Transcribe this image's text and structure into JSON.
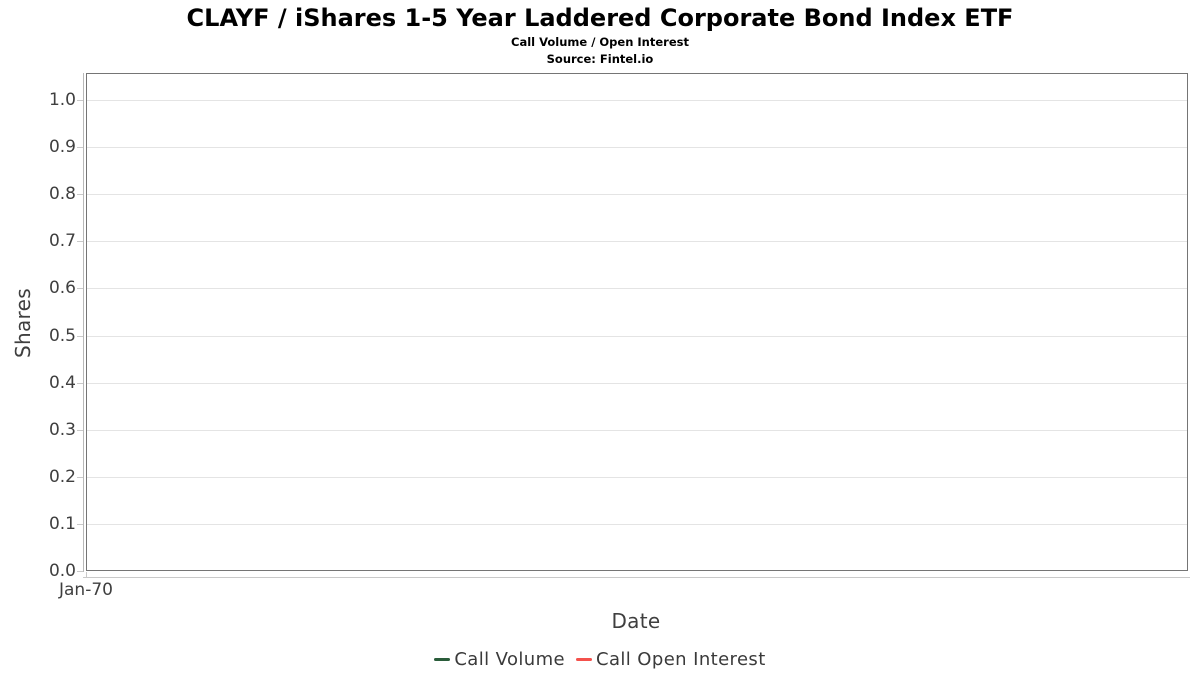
{
  "chart_data": {
    "type": "line",
    "title": "CLAYF / iShares 1-5 Year Laddered Corporate Bond Index ETF",
    "subtitle": "Call Volume / Open Interest",
    "source": "Source: Fintel.io",
    "xlabel": "Date",
    "ylabel": "Shares",
    "x_ticks": [
      "Jan-70"
    ],
    "y_ticks": [
      "0.0",
      "0.1",
      "0.2",
      "0.3",
      "0.4",
      "0.5",
      "0.6",
      "0.7",
      "0.8",
      "0.9",
      "1.0"
    ],
    "ylim": [
      0.0,
      1.0
    ],
    "grid": "horizontal",
    "legend_position": "bottom",
    "series": [
      {
        "name": "Call Volume",
        "color": "#2a5c3a",
        "values": []
      },
      {
        "name": "Call Open Interest",
        "color": "#f4514c",
        "values": []
      }
    ]
  }
}
